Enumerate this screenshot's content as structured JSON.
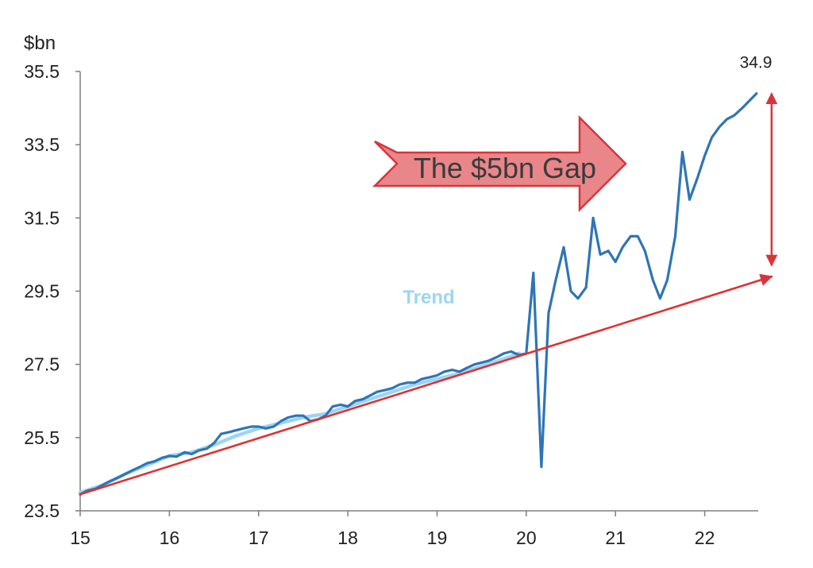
{
  "chart_data": {
    "type": "line",
    "title": "",
    "xlabel": "",
    "ylabel": "$bn",
    "xlim": [
      15,
      22.6
    ],
    "ylim": [
      23.5,
      35.5
    ],
    "x_ticks": [
      "15",
      "16",
      "17",
      "18",
      "19",
      "20",
      "21",
      "22"
    ],
    "y_ticks": [
      "35.5",
      "33.5",
      "31.5",
      "29.5",
      "27.5",
      "25.5",
      "23.5"
    ],
    "grid": false,
    "series": [
      {
        "name": "",
        "color": "#2e75b6",
        "x": [
          15.0,
          15.08,
          15.17,
          15.25,
          15.33,
          15.42,
          15.5,
          15.58,
          15.67,
          15.75,
          15.83,
          15.92,
          16.0,
          16.08,
          16.17,
          16.25,
          16.33,
          16.42,
          16.5,
          16.58,
          16.67,
          16.75,
          16.83,
          16.92,
          17.0,
          17.08,
          17.17,
          17.25,
          17.33,
          17.42,
          17.5,
          17.58,
          17.67,
          17.75,
          17.83,
          17.92,
          18.0,
          18.08,
          18.17,
          18.25,
          18.33,
          18.42,
          18.5,
          18.58,
          18.67,
          18.75,
          18.83,
          18.92,
          19.0,
          19.08,
          19.17,
          19.25,
          19.33,
          19.42,
          19.5,
          19.58,
          19.67,
          19.75,
          19.83,
          19.92,
          20.0,
          20.08,
          20.17,
          20.25,
          20.33,
          20.42,
          20.5,
          20.58,
          20.67,
          20.75,
          20.83,
          20.92,
          21.0,
          21.08,
          21.17,
          21.25,
          21.33,
          21.42,
          21.5,
          21.58,
          21.67,
          21.75,
          21.83,
          21.92,
          22.0,
          22.08,
          22.17,
          22.25,
          22.33,
          22.42,
          22.5,
          22.58
        ],
        "y": [
          23.95,
          24.05,
          24.1,
          24.2,
          24.3,
          24.4,
          24.5,
          24.6,
          24.7,
          24.8,
          24.85,
          24.95,
          25.0,
          24.98,
          25.1,
          25.05,
          25.15,
          25.2,
          25.35,
          25.6,
          25.65,
          25.7,
          25.75,
          25.8,
          25.8,
          25.75,
          25.8,
          25.95,
          26.05,
          26.1,
          26.1,
          25.95,
          26.0,
          26.1,
          26.35,
          26.4,
          26.35,
          26.5,
          26.55,
          26.65,
          26.75,
          26.8,
          26.85,
          26.95,
          27.0,
          27.0,
          27.1,
          27.15,
          27.2,
          27.3,
          27.35,
          27.3,
          27.4,
          27.5,
          27.55,
          27.6,
          27.7,
          27.8,
          27.85,
          27.75,
          27.8,
          30.0,
          24.7,
          28.9,
          29.8,
          30.7,
          29.5,
          29.3,
          29.6,
          31.5,
          30.5,
          30.6,
          30.3,
          30.7,
          31.0,
          31.0,
          30.6,
          29.8,
          29.3,
          29.8,
          31.0,
          33.3,
          32.0,
          32.6,
          33.2,
          33.7,
          34.0,
          34.2,
          34.3,
          34.5,
          34.7,
          34.9
        ]
      },
      {
        "name": "Trend",
        "color": "#9dd5f3",
        "x": [
          15.0,
          15.25,
          15.5,
          15.75,
          16.0,
          16.25,
          16.5,
          16.75,
          17.0,
          17.25,
          17.5,
          17.75,
          18.0,
          18.25,
          18.5,
          18.75,
          19.0,
          19.25,
          19.5,
          19.75,
          19.92
        ],
        "y": [
          24.0,
          24.2,
          24.5,
          24.75,
          25.0,
          25.1,
          25.3,
          25.55,
          25.75,
          25.9,
          26.05,
          26.15,
          26.35,
          26.55,
          26.75,
          26.95,
          27.1,
          27.25,
          27.45,
          27.65,
          27.8
        ]
      },
      {
        "name": "",
        "color": "#e03131",
        "x": [
          15.0,
          22.75
        ],
        "y": [
          23.95,
          29.9
        ]
      }
    ],
    "annotations": {
      "last_value_label": "34.9",
      "gap_label": "The $5bn Gap",
      "gap_arrow": {
        "x": 22.75,
        "y_from": 30.2,
        "y_to": 34.9
      },
      "arrow_fill": "#e8868a",
      "arrow_stroke": "#d9343a"
    }
  }
}
